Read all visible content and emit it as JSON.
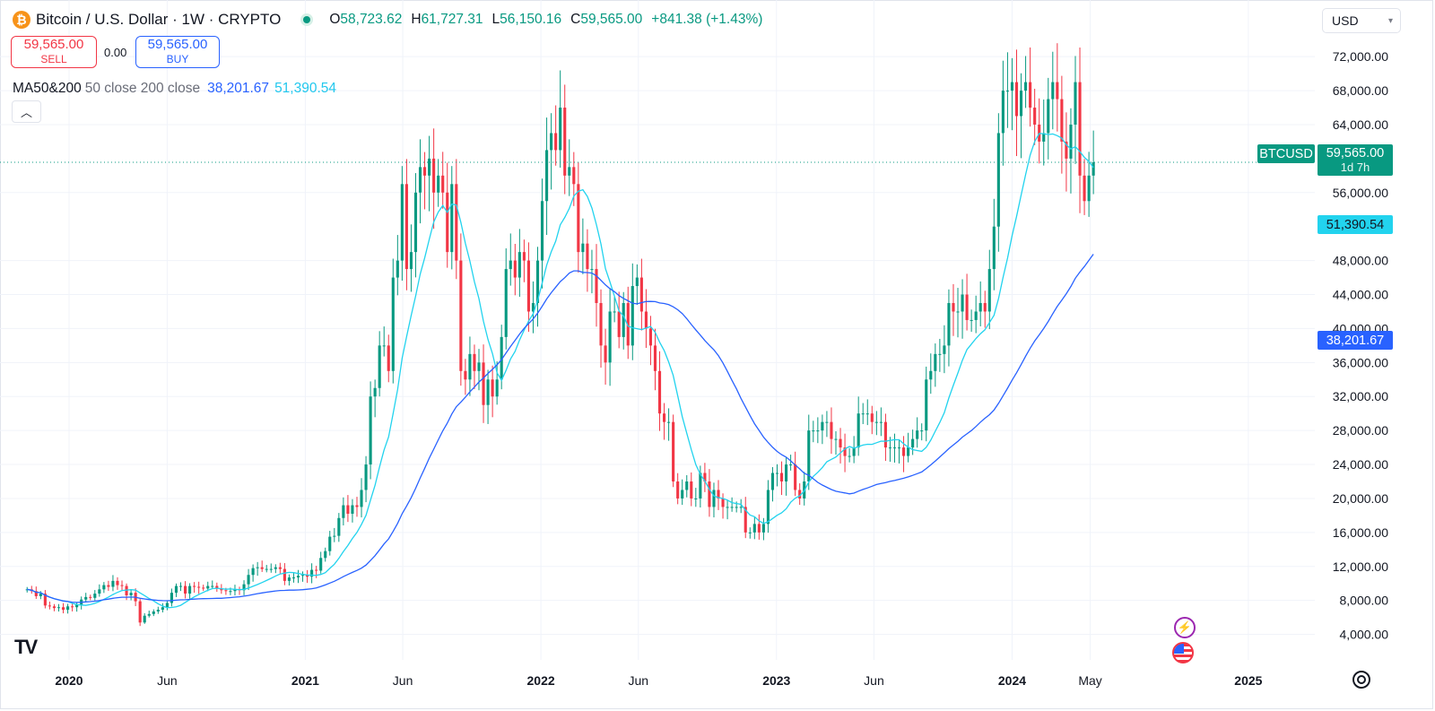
{
  "header": {
    "title": "Bitcoin / U.S. Dollar · 1W · CRYPTO",
    "o_label": "O",
    "o_value": "58,723.62",
    "h_label": "H",
    "h_value": "61,727.31",
    "l_label": "L",
    "l_value": "56,150.16",
    "c_label": "C",
    "c_value": "59,565.00",
    "change": "+841.38 (+1.43%)"
  },
  "trade": {
    "sell_price": "59,565.00",
    "sell_label": "SELL",
    "spread": "0.00",
    "buy_price": "59,565.00",
    "buy_label": "BUY"
  },
  "indicator": {
    "name": "MA50&200",
    "params": "50 close 200 close",
    "ma200_value": "38,201.67",
    "ma50_value": "51,390.54"
  },
  "currency": "USD",
  "price_tags": {
    "symbol": "BTCUSD",
    "last_price": "59,565.00",
    "countdown": "1d 7h",
    "ma50": "51,390.54",
    "ma200": "38,201.67"
  },
  "colors": {
    "up": "#089981",
    "down": "#f23645",
    "ma50": "#22d3ee",
    "ma200": "#2962ff",
    "grid": "#f0f3fa"
  },
  "icons": [
    "bitcoin-logo-icon",
    "market-status-icon",
    "chevron-up-icon",
    "chevron-down-icon",
    "lightning-icon",
    "us-flag-icon",
    "tradingview-logo-icon",
    "settings-icon"
  ],
  "chart_data": {
    "type": "candlestick",
    "title": "Bitcoin / U.S. Dollar · 1W · CRYPTO",
    "y_ticks": [
      "72,000.00",
      "68,000.00",
      "64,000.00",
      "56,000.00",
      "48,000.00",
      "44,000.00",
      "40,000.00",
      "36,000.00",
      "32,000.00",
      "28,000.00",
      "24,000.00",
      "20,000.00",
      "16,000.00",
      "12,000.00",
      "8,000.00",
      "4,000.00"
    ],
    "ylim": [
      1000,
      75500
    ],
    "x_ticks": [
      {
        "label": "2020",
        "date": "2020-01-01",
        "bold": true
      },
      {
        "label": "Jun",
        "date": "2020-06-01",
        "bold": false
      },
      {
        "label": "2021",
        "date": "2021-01-01",
        "bold": true
      },
      {
        "label": "Jun",
        "date": "2021-06-01",
        "bold": false
      },
      {
        "label": "2022",
        "date": "2022-01-01",
        "bold": true
      },
      {
        "label": "Jun",
        "date": "2022-06-01",
        "bold": false
      },
      {
        "label": "2023",
        "date": "2023-01-01",
        "bold": true
      },
      {
        "label": "Jun",
        "date": "2023-06-01",
        "bold": false
      },
      {
        "label": "2024",
        "date": "2024-01-01",
        "bold": true
      },
      {
        "label": "May",
        "date": "2024-05-01",
        "bold": false
      },
      {
        "label": "2025",
        "date": "2025-01-01",
        "bold": true
      }
    ],
    "xlim": [
      "2019-09-16",
      "2025-04-14"
    ],
    "last_price": 59565,
    "weekly_closes": {
      "start": "2019-10-28",
      "values": [
        9300,
        9100,
        8500,
        8800,
        7400,
        7300,
        7100,
        7200,
        6900,
        7300,
        7200,
        7500,
        8100,
        8400,
        8300,
        8800,
        9300,
        9800,
        9600,
        10300,
        9800,
        9700,
        8600,
        8900,
        7900,
        5400,
        6200,
        6400,
        6700,
        6900,
        7200,
        7700,
        8900,
        9700,
        9700,
        8800,
        9700,
        9600,
        9500,
        9400,
        9700,
        9700,
        9400,
        9200,
        9100,
        9100,
        9300,
        9200,
        9900,
        11000,
        11800,
        11900,
        11700,
        11700,
        11700,
        11900,
        11700,
        10300,
        10700,
        10700,
        10900,
        11000,
        10800,
        11600,
        11500,
        13000,
        13800,
        15500,
        15600,
        17700,
        19200,
        18200,
        19200,
        19000,
        21000,
        24000,
        32000,
        33000,
        38000,
        38000,
        35000,
        46000,
        48000,
        57000,
        47000,
        49000,
        56000,
        59000,
        58000,
        60000,
        56000,
        58000,
        56000,
        49000,
        57000,
        48000,
        35000,
        34000,
        37000,
        35000,
        36000,
        31000,
        34000,
        32000,
        34000,
        39000,
        47000,
        48000,
        46000,
        49000,
        48000,
        42000,
        43000,
        48000,
        55000,
        61000,
        63000,
        61000,
        66000,
        58000,
        59000,
        57000,
        49000,
        50000,
        47000,
        47000,
        43000,
        38000,
        36000,
        42000,
        42000,
        39000,
        43000,
        38000,
        45000,
        46000,
        42000,
        40000,
        38000,
        35000,
        30000,
        29000,
        29000,
        22000,
        20000,
        21000,
        22000,
        20000,
        20000,
        23000,
        22000,
        19000,
        21000,
        20000,
        19000,
        19000,
        19000,
        19000,
        19000,
        16000,
        16000,
        17000,
        16000,
        17000,
        21000,
        23000,
        23000,
        22000,
        24000,
        24000,
        21000,
        20000,
        22000,
        28000,
        28000,
        28000,
        29000,
        29000,
        27000,
        27000,
        26000,
        25000,
        25000,
        26000,
        30000,
        30000,
        30000,
        29000,
        29000,
        29000,
        26000,
        26000,
        26000,
        26000,
        25000,
        26000,
        27000,
        28000,
        28000,
        34000,
        35000,
        37000,
        37000,
        38000,
        43000,
        42000,
        42000,
        44000,
        41000,
        41000,
        42000,
        43000,
        42000,
        47000,
        52000,
        63000,
        68000,
        68000,
        69000,
        65000,
        68000,
        69000,
        66000,
        64000,
        62000,
        63000,
        67000,
        69000,
        67000,
        62000,
        60000,
        64000,
        69000,
        58000,
        55000,
        58000,
        59565
      ]
    },
    "series": [
      {
        "name": "MA50",
        "color": "#22d3ee",
        "last": 51390.54
      },
      {
        "name": "MA200",
        "color": "#2962ff",
        "last": 38201.67
      }
    ]
  }
}
